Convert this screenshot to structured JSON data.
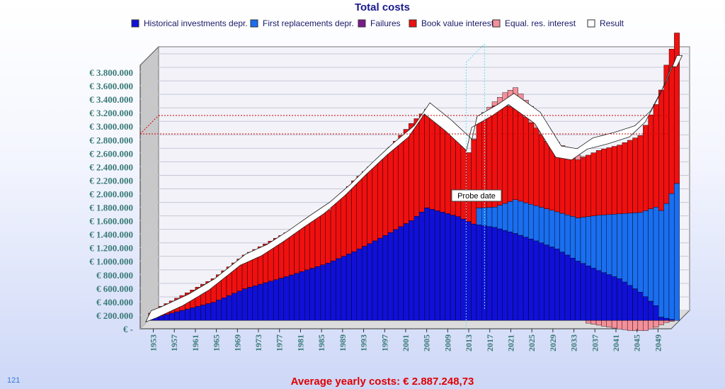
{
  "page": {
    "corner_number": "121",
    "average_label": "Average yearly costs: € 2.887.248,73",
    "probe_label": "Probe date"
  },
  "colors": {
    "historical": "#1010d8",
    "replacements": "#1a6ef0",
    "failures": "#7a1a8a",
    "book_interest": "#f01010",
    "equal_interest": "#f4909a",
    "result": "#ffffff",
    "average_line": "#d00000",
    "probe_line": "#66e0f0"
  },
  "chart_data": {
    "type": "area",
    "stacked": true,
    "title": "Total costs",
    "xlabel": "",
    "ylabel": "",
    "ylim": [
      0,
      3800000
    ],
    "ytick_labels": [
      "€ -",
      "€ 200.000",
      "€ 400.000",
      "€ 600.000",
      "€ 800.000",
      "€ 1.000.000",
      "€ 1.200.000",
      "€ 1.400.000",
      "€ 1.600.000",
      "€ 1.800.000",
      "€ 2.000.000",
      "€ 2.200.000",
      "€ 2.400.000",
      "€ 2.600.000",
      "€ 2.800.000",
      "€ 3.000.000",
      "€ 3.200.000",
      "€ 3.400.000",
      "€ 3.600.000",
      "€ 3.800.000"
    ],
    "xtick_labels": [
      "1953",
      "1957",
      "1961",
      "1965",
      "1969",
      "1973",
      "1977",
      "1981",
      "1985",
      "1989",
      "1993",
      "1997",
      "2001",
      "2005",
      "2009",
      "2013",
      "2017",
      "2021",
      "2025",
      "2029",
      "2033",
      "2037",
      "2041",
      "2045",
      "2049"
    ],
    "x_start": 1951,
    "x_end": 2052,
    "grid": true,
    "legend_position": "top",
    "average_value": 2887248.73,
    "probe_year": 2013,
    "series": [
      {
        "name": "Historical investments depr.",
        "color_key": "historical",
        "points": [
          [
            1951,
            20000
          ],
          [
            1953,
            70000
          ],
          [
            1958,
            170000
          ],
          [
            1963,
            270000
          ],
          [
            1969,
            470000
          ],
          [
            1977,
            650000
          ],
          [
            1985,
            850000
          ],
          [
            1990,
            1020000
          ],
          [
            1996,
            1260000
          ],
          [
            2001,
            1480000
          ],
          [
            2004,
            1670000
          ],
          [
            2010,
            1540000
          ],
          [
            2013,
            1430000
          ],
          [
            2017,
            1380000
          ],
          [
            2021,
            1290000
          ],
          [
            2025,
            1180000
          ],
          [
            2029,
            1060000
          ],
          [
            2033,
            880000
          ],
          [
            2037,
            740000
          ],
          [
            2041,
            620000
          ],
          [
            2045,
            420000
          ],
          [
            2048,
            220000
          ],
          [
            2049,
            50000
          ],
          [
            2052,
            0
          ]
        ]
      },
      {
        "name": "First replacements depr.",
        "color_key": "replacements",
        "points": [
          [
            1951,
            0
          ],
          [
            2013,
            0
          ],
          [
            2014,
            250000
          ],
          [
            2017,
            300000
          ],
          [
            2021,
            500000
          ],
          [
            2025,
            520000
          ],
          [
            2029,
            550000
          ],
          [
            2033,
            640000
          ],
          [
            2037,
            820000
          ],
          [
            2041,
            960000
          ],
          [
            2045,
            1180000
          ],
          [
            2048,
            1460000
          ],
          [
            2050,
            1700000
          ],
          [
            2052,
            2030000
          ]
        ]
      },
      {
        "name": "Failures",
        "color_key": "failures",
        "points": [
          [
            1951,
            0
          ],
          [
            2052,
            0
          ]
        ]
      },
      {
        "name": "Book value interest",
        "color_key": "book_interest",
        "points": [
          [
            1951,
            90000
          ],
          [
            1953,
            140000
          ],
          [
            1958,
            240000
          ],
          [
            1963,
            350000
          ],
          [
            1969,
            500000
          ],
          [
            1977,
            650000
          ],
          [
            1985,
            790000
          ],
          [
            1990,
            1050000
          ],
          [
            1996,
            1220000
          ],
          [
            2001,
            1440000
          ],
          [
            2004,
            1460000
          ],
          [
            2008,
            1280000
          ],
          [
            2012,
            1020000
          ],
          [
            2013,
            1250000
          ],
          [
            2017,
            1500000
          ],
          [
            2021,
            1380000
          ],
          [
            2025,
            1150000
          ],
          [
            2029,
            850000
          ],
          [
            2033,
            860000
          ],
          [
            2037,
            960000
          ],
          [
            2041,
            1020000
          ],
          [
            2045,
            1140000
          ],
          [
            2048,
            1520000
          ],
          [
            2050,
            2050000
          ],
          [
            2052,
            2230000
          ]
        ]
      },
      {
        "name": "Equal. res. interest",
        "color_key": "equal_interest",
        "points": [
          [
            1951,
            0
          ],
          [
            2012,
            0
          ],
          [
            2017,
            60000
          ],
          [
            2019,
            200000
          ],
          [
            2021,
            280000
          ],
          [
            2025,
            230000
          ],
          [
            2029,
            180000
          ],
          [
            2033,
            70000
          ],
          [
            2035,
            -40000
          ],
          [
            2039,
            -100000
          ],
          [
            2043,
            -150000
          ],
          [
            2046,
            -150000
          ],
          [
            2048,
            -100000
          ],
          [
            2050,
            -30000
          ],
          [
            2052,
            0
          ]
        ]
      },
      {
        "name": "Result",
        "color_key": "result",
        "is_line": true,
        "points": [
          [
            1951,
            20000
          ],
          [
            1953,
            80000
          ],
          [
            1958,
            260000
          ],
          [
            1963,
            490000
          ],
          [
            1969,
            860000
          ],
          [
            1973,
            1000000
          ],
          [
            1977,
            1200000
          ],
          [
            1981,
            1420000
          ],
          [
            1985,
            1630000
          ],
          [
            1989,
            1900000
          ],
          [
            1993,
            2210000
          ],
          [
            1997,
            2500000
          ],
          [
            2001,
            2760000
          ],
          [
            2004,
            3100000
          ],
          [
            2008,
            2850000
          ],
          [
            2012,
            2560000
          ],
          [
            2013,
            2900000
          ],
          [
            2017,
            3080000
          ],
          [
            2020,
            3240000
          ],
          [
            2025,
            2960000
          ],
          [
            2029,
            2460000
          ],
          [
            2032,
            2420000
          ],
          [
            2035,
            2580000
          ],
          [
            2039,
            2660000
          ],
          [
            2043,
            2760000
          ],
          [
            2046,
            2980000
          ],
          [
            2049,
            3420000
          ],
          [
            2051,
            3800000
          ]
        ]
      }
    ]
  }
}
